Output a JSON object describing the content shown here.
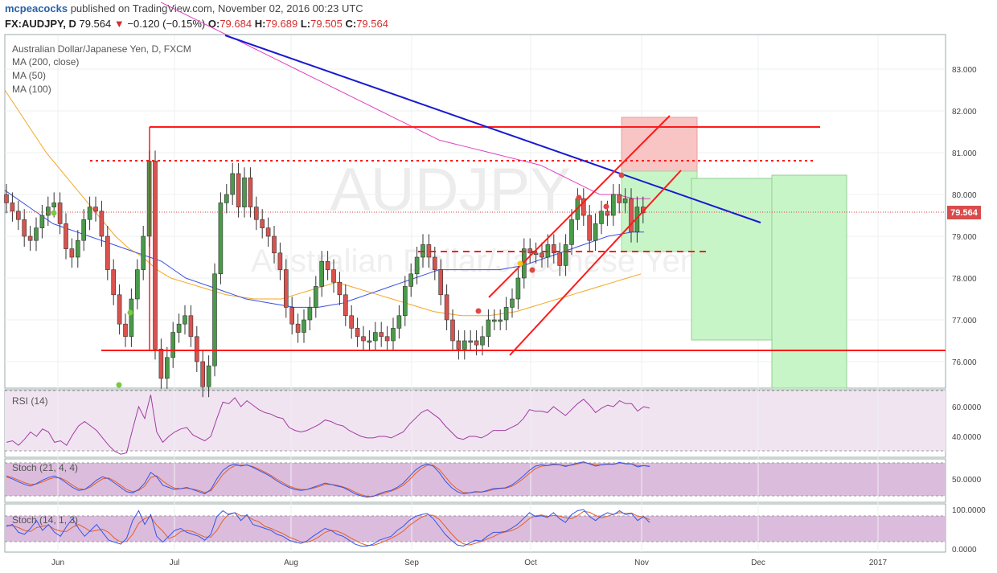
{
  "header": {
    "user": "mcpeacocks",
    "published_text": "published on TradingView.com, November 02, 2016 00:23 UTC",
    "symbol": "FX:AUDJPY, D",
    "last": "79.564",
    "change_arrow": "▼",
    "change": "−0.120 (−0.15%)",
    "o_label": "O:",
    "o_val": "79.684",
    "h_label": "H:",
    "h_val": "79.689",
    "l_label": "L:",
    "l_val": "79.505",
    "c_label": "C:",
    "c_val": "79.564"
  },
  "legend": {
    "title": "Australian Dollar/Japanese Yen, D, FXCM",
    "ma200": "MA (200, close)",
    "ma50": "MA (50)",
    "ma100": "MA (100)"
  },
  "watermark": {
    "symbol": "AUDJPY",
    "name": "Australian Dollar/Japanese Yen"
  },
  "panes": {
    "rsi_label": "RSI (14)",
    "stoch1_label": "Stoch (21, 4, 4)",
    "stoch2_label": "Stoch (14, 1, 3)"
  },
  "colors": {
    "up": "#4a9a4a",
    "down": "#d9534f",
    "ma200": "#e040c0",
    "ma50": "#f5a623",
    "ma100": "#3a50e0",
    "trend": "#1a1ad0",
    "level": "#ff1a1a",
    "rsi": "#a03ca0",
    "stoch_k": "#3355ee",
    "stoch_d": "#e0602a"
  },
  "chart_data": [
    {
      "type": "candlestick",
      "title": "Australian Dollar/Japanese Yen, D, FXCM",
      "x_ticks": [
        "Jun",
        "Jul",
        "Aug",
        "Sep",
        "Oct",
        "Nov",
        "Dec",
        "2017"
      ],
      "y_ticks": [
        "83.000",
        "82.000",
        "81.000",
        "80.000",
        "79.000",
        "78.000",
        "77.000",
        "76.000"
      ],
      "ylim": [
        75.4,
        83.8
      ],
      "last_price": "79.564",
      "closes": [
        79.8,
        79.6,
        79.4,
        79.0,
        78.9,
        79.2,
        79.5,
        79.7,
        79.8,
        79.3,
        78.7,
        78.5,
        78.9,
        79.4,
        79.7,
        79.6,
        79.0,
        78.2,
        77.6,
        76.9,
        76.6,
        77.5,
        78.2,
        79.0,
        80.8,
        76.3,
        75.6,
        76.1,
        76.7,
        76.9,
        77.1,
        76.6,
        76.0,
        75.4,
        75.9,
        78.1,
        79.8,
        80.0,
        80.5,
        79.7,
        80.4,
        79.7,
        79.4,
        79.2,
        79.0,
        78.6,
        78.2,
        77.3,
        76.9,
        76.7,
        77.0,
        77.3,
        77.8,
        78.4,
        78.2,
        77.9,
        77.6,
        77.1,
        76.8,
        76.6,
        76.5,
        76.5,
        76.7,
        76.6,
        76.5,
        76.8,
        77.1,
        77.8,
        78.1,
        78.5,
        78.8,
        78.5,
        78.2,
        77.6,
        77.0,
        76.5,
        76.3,
        76.5,
        76.5,
        76.4,
        76.6,
        77.0,
        77.0,
        77.0,
        77.3,
        77.5,
        78.0,
        78.7,
        78.6,
        78.6,
        78.5,
        78.8,
        78.6,
        78.3,
        78.8,
        79.4,
        79.9,
        79.5,
        78.9,
        79.3,
        79.6,
        79.5,
        80.0,
        79.8,
        79.9,
        79.1,
        79.7,
        79.56
      ],
      "ma200": [
        84.6,
        84.5,
        84.4,
        84.3,
        84.2,
        84.1,
        84.0,
        83.9,
        83.8,
        83.7,
        83.6,
        83.5,
        83.4,
        83.3,
        83.2,
        83.1,
        83.0,
        82.9,
        82.8,
        82.7,
        82.6,
        82.5,
        82.4,
        82.3,
        82.2,
        82.1,
        82.0,
        81.9,
        81.8,
        81.7,
        81.6,
        81.5,
        81.4,
        81.3,
        81.25,
        81.2,
        81.15,
        81.1,
        81.05,
        81.0,
        80.95,
        80.9,
        80.85,
        80.8,
        80.75,
        80.7,
        80.6,
        80.5,
        80.4,
        80.3,
        80.2,
        80.1,
        80.0,
        80.0,
        80.0,
        79.95,
        79.9,
        79.9,
        79.9
      ],
      "ma50": [
        82.5,
        82.0,
        81.5,
        81.0,
        80.6,
        80.2,
        79.8,
        79.4,
        79.0,
        78.7,
        78.5,
        78.2,
        78.0,
        77.9,
        77.8,
        77.7,
        77.6,
        77.55,
        77.5,
        77.5,
        77.5,
        77.6,
        77.7,
        77.8,
        77.9,
        77.8,
        77.7,
        77.6,
        77.5,
        77.4,
        77.3,
        77.2,
        77.15,
        77.1,
        77.1,
        77.1,
        77.15,
        77.2,
        77.3,
        77.4,
        77.5,
        77.6,
        77.7,
        77.8,
        77.9,
        78.0,
        78.1
      ],
      "ma100": [
        80.1,
        79.9,
        79.7,
        79.5,
        79.3,
        79.2,
        79.1,
        79.0,
        78.9,
        78.8,
        78.7,
        78.6,
        78.5,
        78.4,
        78.2,
        78.0,
        77.9,
        77.8,
        77.7,
        77.6,
        77.5,
        77.45,
        77.4,
        77.35,
        77.3,
        77.3,
        77.3,
        77.35,
        77.4,
        77.5,
        77.6,
        77.7,
        77.8,
        77.9,
        78.0,
        78.1,
        78.2,
        78.2,
        78.2,
        78.2,
        78.2,
        78.2,
        78.25,
        78.3,
        78.4,
        78.5,
        78.6,
        78.7,
        78.8,
        78.9,
        79.0,
        79.05,
        79.1,
        79.1
      ]
    },
    {
      "type": "line",
      "title": "RSI (14)",
      "y_ticks": [
        "60.0000",
        "40.0000"
      ],
      "series": [
        {
          "values": [
            36,
            37,
            34,
            38,
            43,
            40,
            45,
            43,
            36,
            37,
            34,
            41,
            47,
            50,
            47,
            44,
            39,
            34,
            30,
            28,
            29,
            45,
            60,
            52,
            68,
            43,
            36,
            40,
            43,
            45,
            46,
            41,
            39,
            37,
            40,
            52,
            63,
            62,
            66,
            60,
            64,
            61,
            58,
            56,
            55,
            53,
            52,
            46,
            44,
            43,
            44,
            46,
            48,
            51,
            50,
            48,
            47,
            44,
            42,
            40,
            39,
            39,
            40,
            40,
            39,
            41,
            43,
            48,
            52,
            56,
            58,
            55,
            52,
            47,
            43,
            39,
            38,
            40,
            40,
            39,
            41,
            44,
            44,
            44,
            46,
            48,
            52,
            58,
            57,
            57,
            56,
            60,
            57,
            54,
            58,
            62,
            65,
            61,
            56,
            59,
            61,
            60,
            64,
            62,
            62,
            57,
            60,
            59
          ]
        }
      ]
    },
    {
      "type": "line",
      "title": "Stoch (21, 4, 4)",
      "y_ticks": [
        "50.0000"
      ],
      "series": [
        {
          "name": "K",
          "values": [
            60,
            55,
            48,
            42,
            38,
            44,
            52,
            58,
            62,
            55,
            45,
            35,
            28,
            30,
            40,
            52,
            60,
            55,
            45,
            35,
            25,
            22,
            30,
            45,
            70,
            60,
            40,
            35,
            30,
            32,
            35,
            30,
            25,
            20,
            30,
            55,
            75,
            85,
            90,
            85,
            88,
            82,
            75,
            68,
            60,
            50,
            42,
            35,
            30,
            28,
            30,
            35,
            40,
            45,
            42,
            38,
            35,
            28,
            20,
            15,
            12,
            14,
            20,
            25,
            28,
            35,
            45,
            60,
            75,
            85,
            90,
            85,
            70,
            50,
            35,
            25,
            20,
            22,
            25,
            24,
            28,
            32,
            33,
            34,
            40,
            50,
            62,
            75,
            85,
            88,
            86,
            90,
            88,
            84,
            88,
            92,
            95,
            90,
            85,
            88,
            90,
            89,
            94,
            90,
            90,
            83,
            86,
            84
          ]
        },
        {
          "name": "D",
          "values": [
            62,
            58,
            52,
            46,
            42,
            43,
            48,
            54,
            58,
            57,
            50,
            40,
            32,
            30,
            36,
            46,
            55,
            57,
            50,
            40,
            30,
            25,
            28,
            38,
            58,
            62,
            50,
            40,
            33,
            32,
            33,
            31,
            28,
            23,
            27,
            45,
            65,
            78,
            86,
            87,
            87,
            84,
            78,
            71,
            63,
            54,
            46,
            38,
            33,
            30,
            30,
            33,
            37,
            42,
            42,
            40,
            36,
            31,
            24,
            18,
            14,
            14,
            18,
            22,
            26,
            32,
            40,
            52,
            67,
            79,
            87,
            87,
            77,
            60,
            43,
            31,
            23,
            22,
            24,
            24,
            26,
            30,
            32,
            33,
            37,
            45,
            56,
            68,
            79,
            85,
            86,
            88,
            88,
            86,
            87,
            90,
            93,
            91,
            88,
            88,
            89,
            89,
            92,
            91,
            90,
            86,
            86,
            85
          ]
        }
      ]
    },
    {
      "type": "line",
      "title": "Stoch (14, 1, 3)",
      "y_ticks": [
        "100.0000",
        "0.0000"
      ],
      "series": [
        {
          "name": "K",
          "values": [
            55,
            60,
            40,
            35,
            50,
            70,
            45,
            60,
            40,
            30,
            55,
            75,
            50,
            30,
            45,
            60,
            40,
            20,
            15,
            10,
            25,
            70,
            95,
            60,
            85,
            30,
            15,
            30,
            45,
            50,
            40,
            35,
            30,
            20,
            35,
            80,
            95,
            85,
            90,
            70,
            85,
            60,
            55,
            50,
            45,
            35,
            30,
            20,
            15,
            12,
            18,
            30,
            40,
            50,
            45,
            35,
            30,
            20,
            10,
            5,
            5,
            10,
            20,
            25,
            30,
            45,
            55,
            70,
            80,
            85,
            88,
            75,
            55,
            35,
            20,
            8,
            5,
            12,
            20,
            18,
            30,
            40,
            40,
            42,
            50,
            60,
            75,
            90,
            80,
            82,
            78,
            90,
            75,
            65,
            85,
            95,
            98,
            80,
            70,
            82,
            90,
            85,
            95,
            85,
            88,
            70,
            80,
            65
          ]
        },
        {
          "name": "D",
          "values": [
            58,
            57,
            52,
            45,
            42,
            52,
            55,
            58,
            48,
            43,
            42,
            53,
            60,
            52,
            42,
            45,
            48,
            40,
            25,
            15,
            17,
            35,
            63,
            75,
            80,
            58,
            43,
            25,
            30,
            42,
            45,
            42,
            35,
            28,
            28,
            45,
            70,
            87,
            90,
            82,
            82,
            72,
            67,
            55,
            50,
            43,
            37,
            28,
            22,
            16,
            15,
            20,
            29,
            40,
            45,
            43,
            37,
            28,
            20,
            12,
            7,
            7,
            12,
            18,
            25,
            33,
            43,
            57,
            68,
            78,
            84,
            83,
            73,
            55,
            37,
            21,
            11,
            8,
            12,
            17,
            23,
            29,
            37,
            41,
            44,
            51,
            62,
            75,
            82,
            84,
            80,
            83,
            81,
            77,
            75,
            82,
            93,
            91,
            83,
            77,
            81,
            86,
            90,
            88,
            89,
            81,
            79,
            72
          ]
        }
      ]
    }
  ]
}
